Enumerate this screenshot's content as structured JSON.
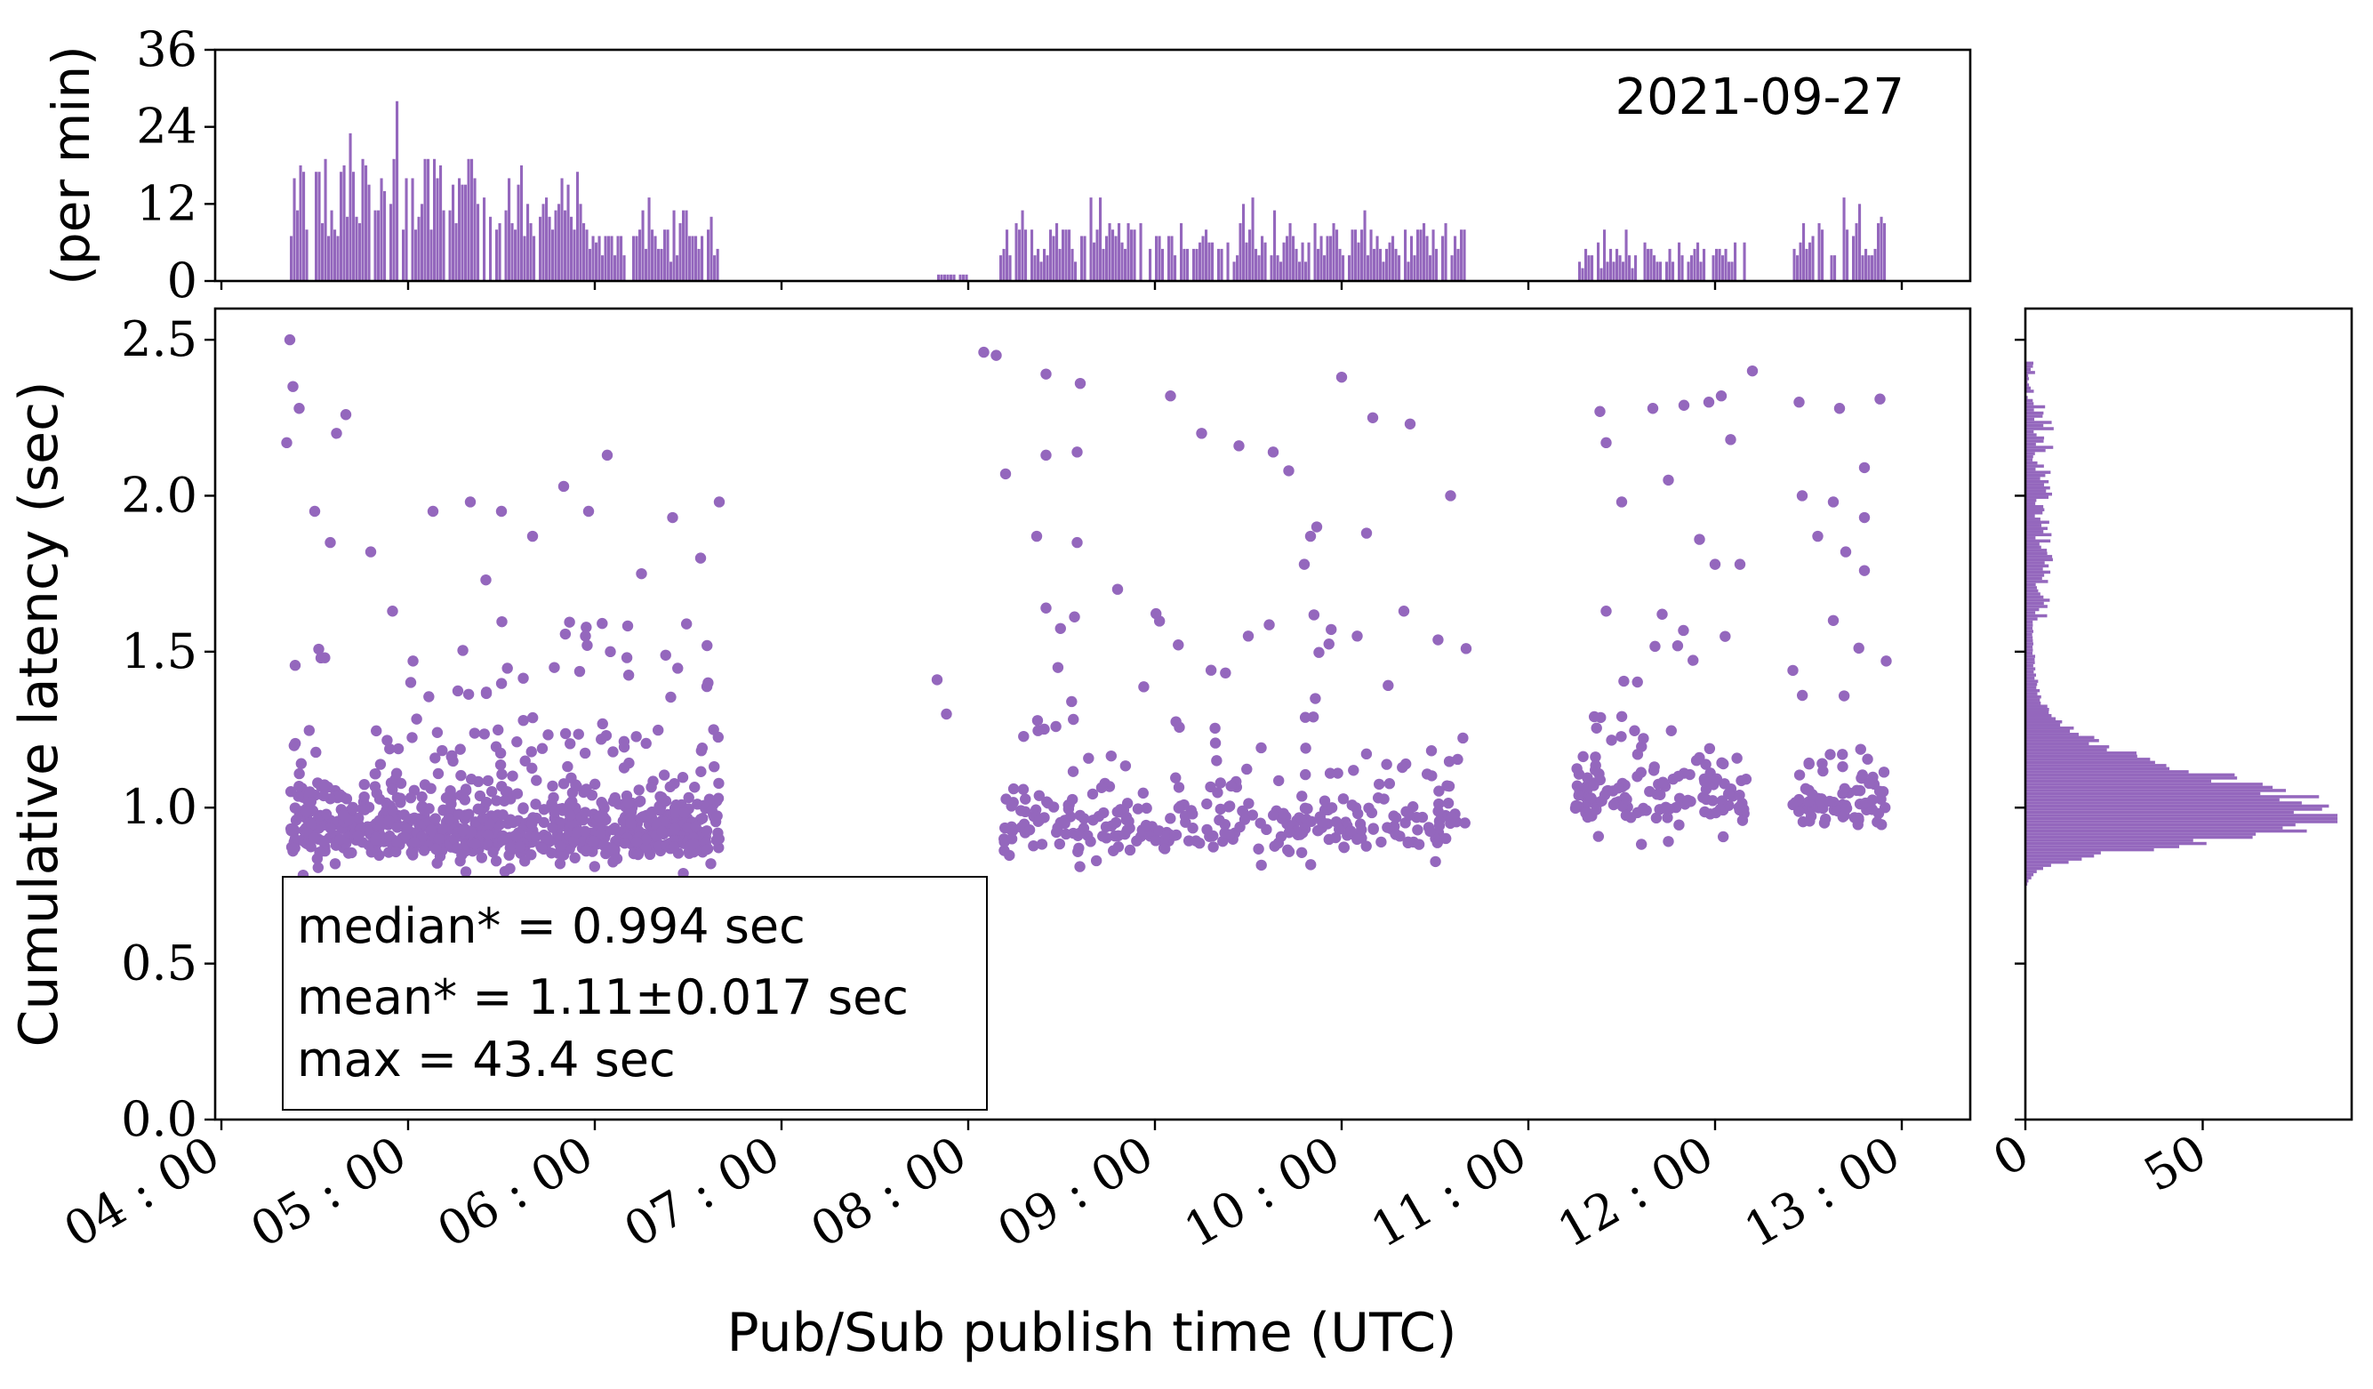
{
  "figure": {
    "date_label": "2021-09-27",
    "stats": {
      "median": "median* = 0.994 sec",
      "mean": "mean* = 1.11±0.017 sec",
      "max": "max = 43.4 sec"
    }
  },
  "colors": {
    "series": "#9467bd",
    "axes": "#000000"
  },
  "chart_data": [
    {
      "type": "bar",
      "panel": "top-histogram",
      "ylabel": "(per min)",
      "ylim": [
        0,
        36
      ],
      "yticks": [
        "0",
        "12",
        "24",
        "36"
      ],
      "bins_minutes": "1",
      "segments": [
        {
          "start": "04:22",
          "end": "05:56",
          "peak": 28
        },
        {
          "start": "05:56",
          "end": "06:40",
          "peak": 13
        },
        {
          "start": "07:50",
          "end": "08:00",
          "peak": 2
        },
        {
          "start": "08:10",
          "end": "10:40",
          "peak": 13
        },
        {
          "start": "11:15",
          "end": "12:10",
          "peak": 9
        },
        {
          "start": "12:25",
          "end": "12:55",
          "peak": 13
        }
      ]
    },
    {
      "type": "scatter",
      "panel": "main",
      "xlabel": "Pub/Sub publish time (UTC)",
      "ylabel": "Cumulative latency (sec)",
      "ylim": [
        0,
        2.6
      ],
      "yticks": [
        "0.0",
        "0.5",
        "1.0",
        "1.5",
        "2.0",
        "2.5"
      ],
      "xlim": [
        "03:58",
        "13:22"
      ],
      "xticks": [
        "04 : 00",
        "05 : 00",
        "06 : 00",
        "07 : 00",
        "08 : 00",
        "09 : 00",
        "10 : 00",
        "11 : 00",
        "12 : 00",
        "13 : 00"
      ],
      "clusters": [
        {
          "start": "04:22",
          "end": "06:40",
          "core": [
            0.78,
            1.25
          ],
          "n": 850
        },
        {
          "start": "08:10",
          "end": "10:40",
          "core": [
            0.8,
            1.3
          ],
          "n": 320
        },
        {
          "start": "11:15",
          "end": "12:10",
          "core": [
            0.88,
            1.3
          ],
          "n": 140
        },
        {
          "start": "12:25",
          "end": "12:55",
          "core": [
            0.88,
            1.25
          ],
          "n": 80
        }
      ],
      "outliers": [
        [
          "04:22",
          2.5
        ],
        [
          "04:23",
          2.35
        ],
        [
          "04:25",
          2.28
        ],
        [
          "04:21",
          2.17
        ],
        [
          "04:40",
          2.26
        ],
        [
          "04:37",
          2.2
        ],
        [
          "04:30",
          1.95
        ],
        [
          "04:35",
          1.85
        ],
        [
          "04:48",
          1.82
        ],
        [
          "05:08",
          1.95
        ],
        [
          "05:20",
          1.98
        ],
        [
          "05:30",
          1.95
        ],
        [
          "05:40",
          1.87
        ],
        [
          "05:50",
          2.03
        ],
        [
          "05:58",
          1.95
        ],
        [
          "06:04",
          2.13
        ],
        [
          "06:25",
          1.93
        ],
        [
          "06:34",
          1.8
        ],
        [
          "06:40",
          1.98
        ],
        [
          "04:55",
          1.63
        ],
        [
          "05:25",
          1.73
        ],
        [
          "05:57",
          1.55
        ],
        [
          "06:05",
          1.5
        ],
        [
          "04:32",
          1.48
        ],
        [
          "06:15",
          1.75
        ],
        [
          "07:50",
          1.41
        ],
        [
          "07:53",
          1.3
        ],
        [
          "08:05",
          2.46
        ],
        [
          "08:09",
          2.45
        ],
        [
          "08:12",
          2.07
        ],
        [
          "08:25",
          2.39
        ],
        [
          "08:36",
          2.36
        ],
        [
          "08:25",
          2.13
        ],
        [
          "08:35",
          2.14
        ],
        [
          "08:22",
          1.87
        ],
        [
          "08:35",
          1.85
        ],
        [
          "08:25",
          1.64
        ],
        [
          "08:48",
          1.7
        ],
        [
          "09:05",
          2.32
        ],
        [
          "09:15",
          2.2
        ],
        [
          "09:27",
          2.16
        ],
        [
          "09:38",
          2.14
        ],
        [
          "10:00",
          2.38
        ],
        [
          "10:10",
          2.25
        ],
        [
          "10:22",
          2.23
        ],
        [
          "10:35",
          2.0
        ],
        [
          "09:52",
          1.9
        ],
        [
          "10:08",
          1.88
        ],
        [
          "09:48",
          1.78
        ],
        [
          "10:05",
          1.55
        ],
        [
          "09:30",
          1.55
        ],
        [
          "10:20",
          1.63
        ],
        [
          "09:50",
          1.87
        ],
        [
          "09:43",
          2.08
        ],
        [
          "10:40",
          1.51
        ],
        [
          "11:23",
          2.27
        ],
        [
          "11:25",
          2.17
        ],
        [
          "11:40",
          2.28
        ],
        [
          "11:50",
          2.29
        ],
        [
          "11:58",
          2.3
        ],
        [
          "12:02",
          2.32
        ],
        [
          "12:12",
          2.4
        ],
        [
          "12:05",
          2.18
        ],
        [
          "11:45",
          2.05
        ],
        [
          "11:30",
          1.98
        ],
        [
          "11:55",
          1.86
        ],
        [
          "12:00",
          1.78
        ],
        [
          "12:08",
          1.78
        ],
        [
          "11:25",
          1.63
        ],
        [
          "11:43",
          1.62
        ],
        [
          "12:27",
          2.3
        ],
        [
          "12:40",
          2.28
        ],
        [
          "12:53",
          2.31
        ],
        [
          "12:48",
          2.09
        ],
        [
          "12:38",
          1.98
        ],
        [
          "12:28",
          2.0
        ],
        [
          "12:48",
          1.93
        ],
        [
          "12:33",
          1.87
        ],
        [
          "12:42",
          1.82
        ],
        [
          "12:48",
          1.76
        ],
        [
          "12:38",
          1.6
        ],
        [
          "12:55",
          1.47
        ],
        [
          "12:25",
          1.44
        ]
      ]
    },
    {
      "type": "bar",
      "panel": "right-histogram",
      "orientation": "horizontal",
      "xlim": [
        0,
        92
      ],
      "xticks": [
        "0",
        "50"
      ],
      "peak_latency_sec": 0.95,
      "peak_count": 88
    }
  ]
}
